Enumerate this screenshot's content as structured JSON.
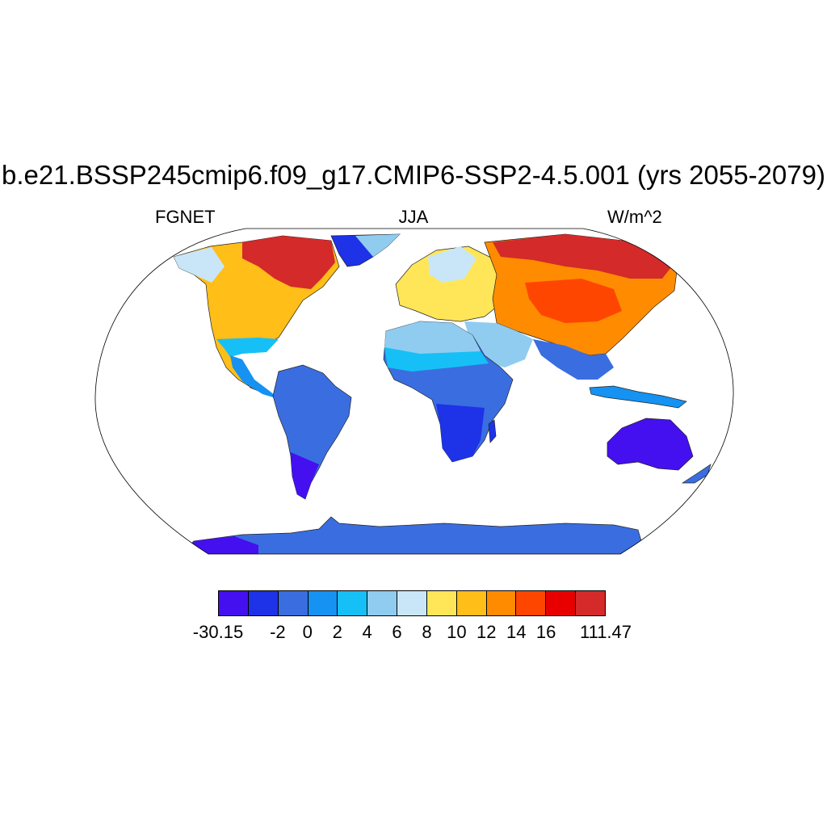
{
  "title": "b.e21.BSSP245cmip6.f09_g17.CMIP6-SSP2-4.5.001 (yrs 2055-2079)",
  "left_label": "FGNET",
  "center_label": "JJA",
  "right_label": "W/m^2",
  "colorbar": {
    "colors": [
      "#4410F0",
      "#1E32E8",
      "#3A6EE0",
      "#1592F2",
      "#16C0F6",
      "#90CCF0",
      "#C9E6F8",
      "#FFE659",
      "#FFBE18",
      "#FF8C00",
      "#FF4600",
      "#E80000",
      "#D42A2A"
    ],
    "labels": [
      "-30.15",
      "-2",
      "0",
      "2",
      "4",
      "6",
      "8",
      "10",
      "12",
      "14",
      "16",
      "111.47"
    ]
  },
  "map": {
    "projection": "Robinson",
    "variable": "FGNET",
    "season": "JJA",
    "units": "W/m^2"
  }
}
